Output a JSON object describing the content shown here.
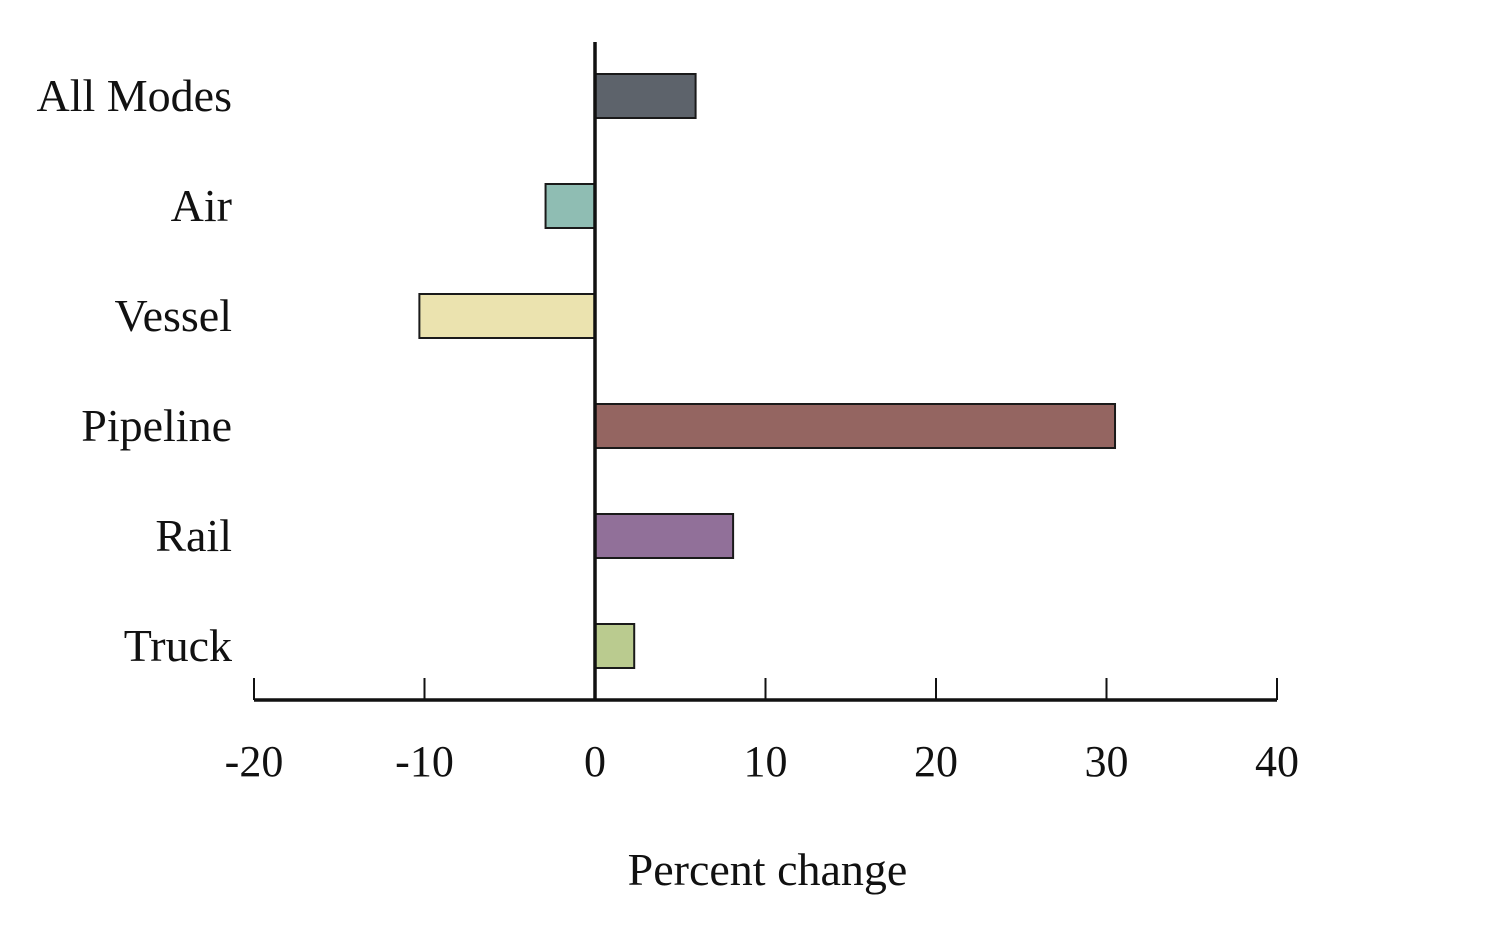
{
  "chart_data": {
    "type": "bar",
    "orientation": "horizontal",
    "categories": [
      "All Modes",
      "Air",
      "Vessel",
      "Pipeline",
      "Rail",
      "Truck"
    ],
    "values": [
      5.9,
      -2.9,
      -10.3,
      30.5,
      8.1,
      2.3
    ],
    "colors": [
      "#5d636b",
      "#8fbdb3",
      "#ebe3af",
      "#946561",
      "#917099",
      "#bacb8f"
    ],
    "xlabel": "Percent change",
    "ylabel": "",
    "title": "",
    "xlim": [
      -20,
      40
    ],
    "xticks": [
      -20,
      -10,
      0,
      10,
      20,
      30,
      40
    ],
    "xtick_labels": [
      "-20",
      "-10",
      "0",
      "10",
      "20",
      "30",
      "40"
    ],
    "grid": false,
    "legend": "none"
  }
}
